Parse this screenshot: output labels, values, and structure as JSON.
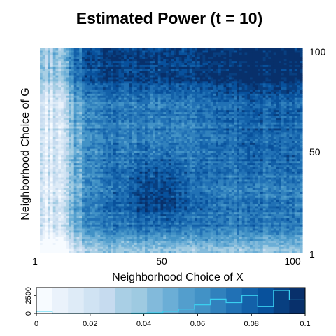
{
  "chart_data": {
    "type": "heatmap",
    "title": "Estimated Power (t = 10)",
    "xlabel": "Neighborhood Choice of X",
    "ylabel": "Neighborhood Choice of G",
    "x_range": [
      1,
      100
    ],
    "y_range": [
      1,
      100
    ],
    "x_ticks": [
      "1",
      "50",
      "100"
    ],
    "y_ticks": [
      "1",
      "50",
      "100"
    ],
    "grid": false,
    "value_range": [
      0,
      0.1
    ],
    "colormap": [
      "#f7fbff",
      "#eaf2fb",
      "#deebf7",
      "#d0e3f3",
      "#c6dbef",
      "#a9cfe5",
      "#9ecae1",
      "#82badb",
      "#6baed6",
      "#539ecd",
      "#4292c6",
      "#3181bd",
      "#2171b5",
      "#1361a9",
      "#08519c",
      "#083f80",
      "#08306b"
    ],
    "description_of_pattern": "low power along left columns (x 1-20) and bottom rows; highest power in upper region (y 75-100) and central block (x 30-55, y 15-45)",
    "legend": {
      "position": "bottom",
      "ticks": [
        "0",
        "0.02",
        "0.04",
        "0.06",
        "0.08",
        "0.1"
      ],
      "count_ticks": [
        "0",
        "2500"
      ],
      "histogram_color": "#3ad0f0",
      "histogram_counts": [
        300,
        0,
        0,
        0,
        0,
        0,
        50,
        100,
        300,
        600,
        1200,
        2000,
        1500,
        2500,
        1000,
        3200,
        1900
      ]
    }
  }
}
